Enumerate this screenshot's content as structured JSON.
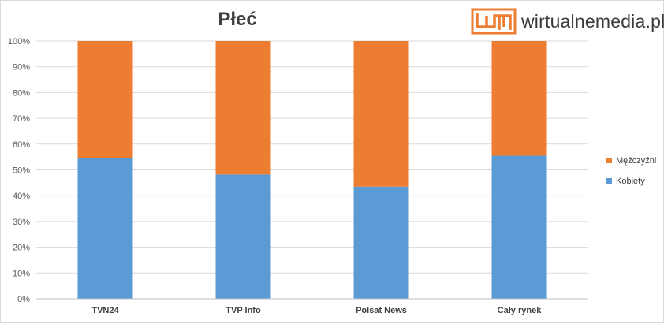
{
  "chart_data": {
    "type": "bar",
    "stacked": true,
    "title": "Płeć",
    "categories": [
      "TVN24",
      "TVP Info",
      "Polsat News",
      "Cały rynek"
    ],
    "series": [
      {
        "name": "Kobiety",
        "color": "#5b9bd5",
        "values": [
          54.5,
          48.2,
          43.5,
          55.5
        ]
      },
      {
        "name": "Mężczyźni",
        "color": "#ed7d31",
        "values": [
          45.5,
          51.8,
          56.5,
          44.5
        ]
      }
    ],
    "ylim": [
      0,
      100
    ],
    "yticks": [
      "0%",
      "10%",
      "20%",
      "30%",
      "40%",
      "50%",
      "60%",
      "70%",
      "80%",
      "90%",
      "100%"
    ],
    "legend_position": "right",
    "grid": true
  },
  "brand": {
    "name": "wirtualnemedia.pl",
    "accent": "#ed7d31"
  }
}
